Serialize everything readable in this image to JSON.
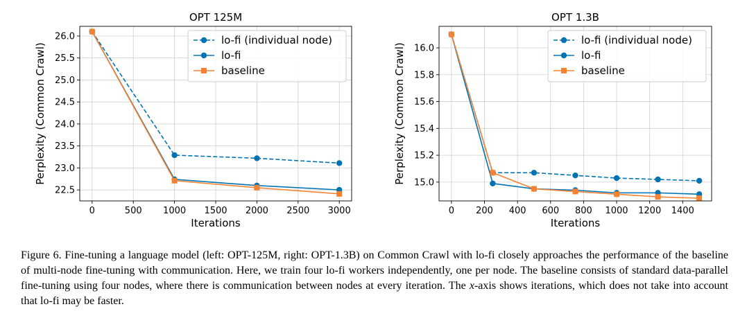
{
  "chart_data": [
    {
      "type": "line",
      "title": "OPT 125M",
      "xlabel": "Iterations",
      "ylabel": "Perplexity (Common Crawl)",
      "xlim": [
        -150,
        3150
      ],
      "ylim": [
        22.25,
        26.22
      ],
      "xticks": [
        0,
        500,
        1000,
        1500,
        2000,
        2500,
        3000
      ],
      "yticks": [
        22.5,
        23.0,
        23.5,
        24.0,
        24.5,
        25.0,
        25.5,
        26.0
      ],
      "ytick_format": "fixed1",
      "grid": true,
      "legend_position": "top-right",
      "series": [
        {
          "name": "lo-fi (individual node)",
          "color": "#0173b2",
          "marker": "circle",
          "dash": true,
          "x": [
            0,
            1000,
            2000,
            3000
          ],
          "y": [
            26.1,
            23.29,
            23.22,
            23.11
          ]
        },
        {
          "name": "lo-fi",
          "color": "#0173b2",
          "marker": "circle",
          "dash": false,
          "x": [
            0,
            1000,
            2000,
            3000
          ],
          "y": [
            26.1,
            22.74,
            22.6,
            22.5
          ]
        },
        {
          "name": "baseline",
          "color": "#f58231",
          "marker": "square",
          "dash": false,
          "x": [
            0,
            1000,
            2000,
            3000
          ],
          "y": [
            26.1,
            22.71,
            22.55,
            22.41
          ]
        }
      ]
    },
    {
      "type": "line",
      "title": "OPT 1.3B",
      "xlabel": "Iterations",
      "ylabel": "Perplexity (Common Crawl)",
      "xlim": [
        -75,
        1575
      ],
      "ylim": [
        14.86,
        16.16
      ],
      "xticks": [
        0,
        200,
        400,
        600,
        800,
        1000,
        1200,
        1400
      ],
      "yticks": [
        15.0,
        15.2,
        15.4,
        15.6,
        15.8,
        16.0
      ],
      "ytick_format": "fixed1",
      "grid": true,
      "legend_position": "top-right",
      "series": [
        {
          "name": "lo-fi (individual node)",
          "color": "#0173b2",
          "marker": "circle",
          "dash": true,
          "x": [
            0,
            250,
            500,
            750,
            1000,
            1250,
            1500
          ],
          "y": [
            16.1,
            15.07,
            15.07,
            15.05,
            15.03,
            15.02,
            15.01
          ]
        },
        {
          "name": "lo-fi",
          "color": "#0173b2",
          "marker": "circle",
          "dash": false,
          "x": [
            0,
            250,
            500,
            750,
            1000,
            1250,
            1500
          ],
          "y": [
            16.1,
            14.99,
            14.95,
            14.94,
            14.92,
            14.92,
            14.91
          ]
        },
        {
          "name": "baseline",
          "color": "#f58231",
          "marker": "square",
          "dash": false,
          "x": [
            0,
            250,
            500,
            750,
            1000,
            1250,
            1500
          ],
          "y": [
            16.1,
            15.07,
            14.95,
            14.93,
            14.91,
            14.89,
            14.88
          ]
        }
      ]
    }
  ],
  "caption": {
    "part1": "Figure 6. Fine-tuning a language model (left: OPT-125M, right: OPT-1.3B) on Common Crawl with lo-fi closely approaches the performance of the baseline of multi-node fine-tuning with communication. Here, we train four lo-fi workers independently, one per node. The baseline consists of standard data-parallel fine-tuning using four nodes, where there is communication between nodes at every iteration. The ",
    "var": "x",
    "part2": "-axis shows iterations, which does not take into account that lo-fi may be faster."
  }
}
